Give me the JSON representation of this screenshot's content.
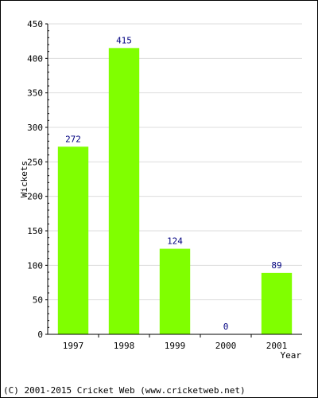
{
  "chart_data": {
    "type": "bar",
    "categories": [
      "1997",
      "1998",
      "1999",
      "2000",
      "2001"
    ],
    "values": [
      272,
      415,
      124,
      0,
      89
    ],
    "data_labels": [
      "272",
      "415",
      "124",
      "0",
      "89"
    ],
    "xlabel": "Year",
    "ylabel": "Wickets",
    "ylim": [
      0,
      450
    ],
    "yticks": [
      0,
      50,
      100,
      150,
      200,
      250,
      300,
      350,
      400,
      450
    ],
    "ytick_labels": [
      "0",
      "50",
      "100",
      "150",
      "200",
      "250",
      "300",
      "350",
      "400",
      "450"
    ],
    "grid": true,
    "bar_color": "#80ff00",
    "label_color": "#000080"
  },
  "footer": {
    "copyright": "(C) 2001-2015 Cricket Web (www.cricketweb.net)"
  }
}
